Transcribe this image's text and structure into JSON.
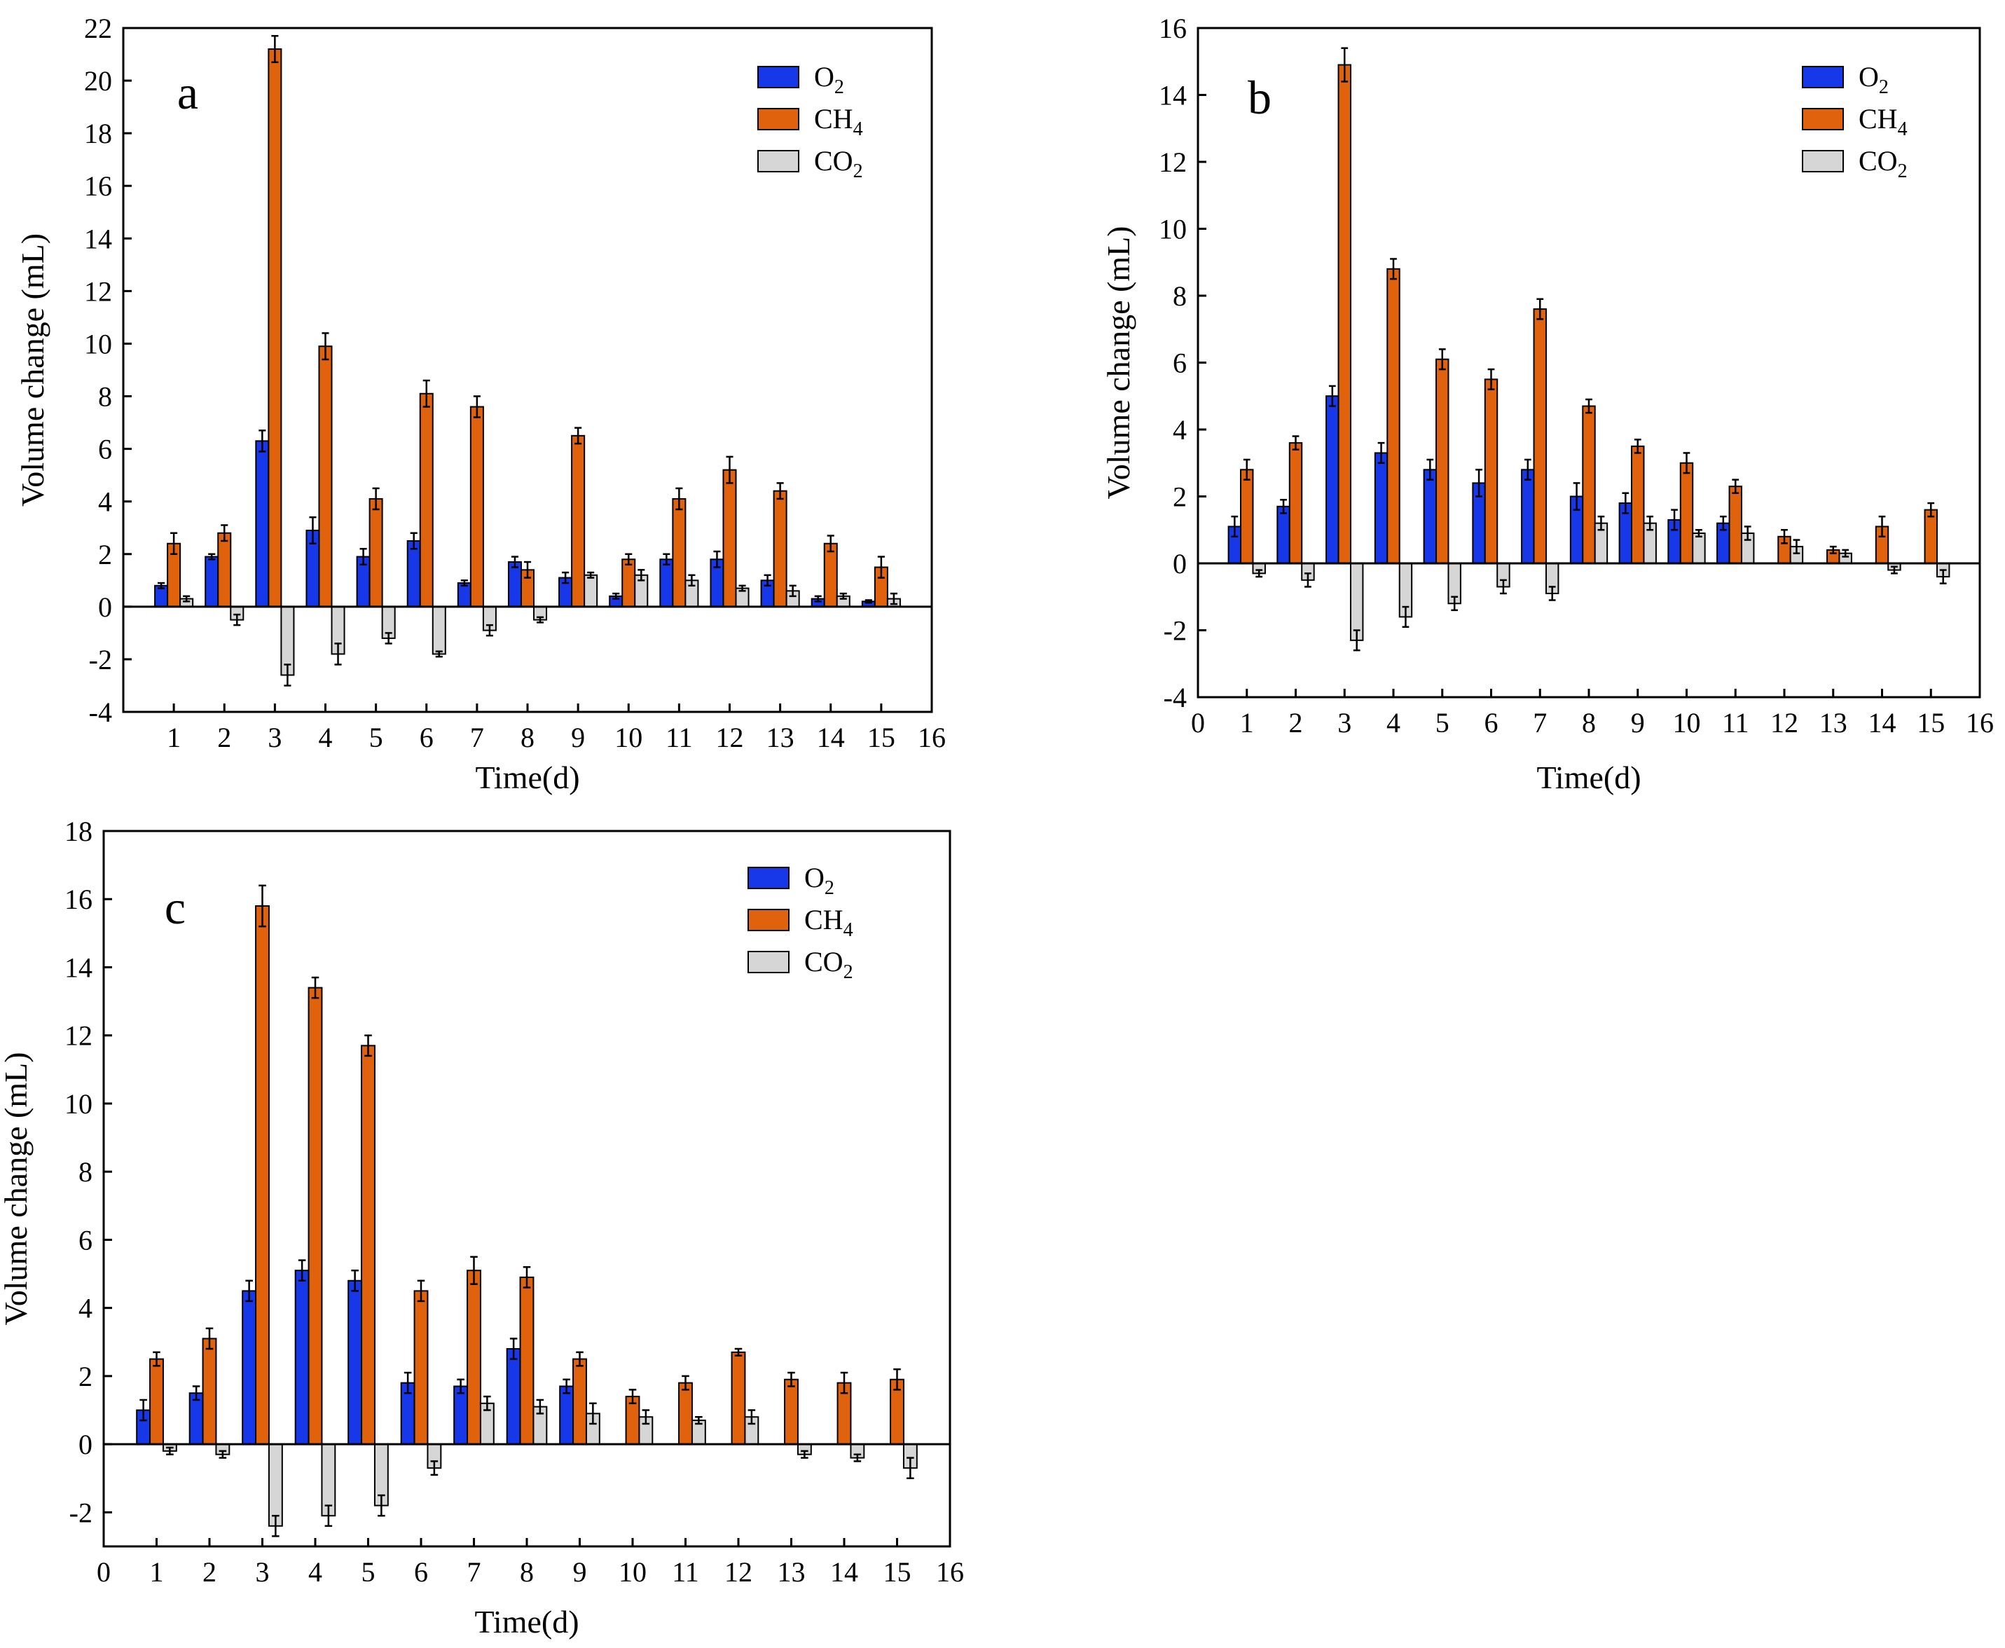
{
  "figure": {
    "colors": {
      "O2": "#1638e8",
      "CH4": "#e0620d",
      "CO2": "#d6d6d6",
      "axis": "#000000",
      "background": "#ffffff"
    },
    "legend": [
      {
        "key": "O2",
        "base": "O",
        "sub": "2"
      },
      {
        "key": "CH4",
        "base": "CH",
        "sub": "4"
      },
      {
        "key": "CO2",
        "base": "CO",
        "sub": "2"
      }
    ]
  },
  "chart_data": [
    {
      "id": "a",
      "type": "bar",
      "panel_label": "a",
      "xlabel": "Time(d)",
      "ylabel": "Volume change (mL)",
      "xlim": [
        0,
        16
      ],
      "ylim": [
        -4,
        22
      ],
      "xticks": [
        "1",
        "2",
        "3",
        "4",
        "5",
        "6",
        "7",
        "8",
        "9",
        "10",
        "11",
        "12",
        "13",
        "14",
        "15",
        "16"
      ],
      "yticks": [
        "-4",
        "-2",
        "0",
        "2",
        "4",
        "6",
        "8",
        "10",
        "12",
        "14",
        "16",
        "18",
        "20",
        "22"
      ],
      "legend_position": "top-right",
      "categories": [
        "1",
        "2",
        "3",
        "4",
        "5",
        "6",
        "7",
        "8",
        "9",
        "10",
        "11",
        "12",
        "13",
        "14",
        "15"
      ],
      "series": [
        {
          "name": "O2",
          "values": [
            0.8,
            1.9,
            6.3,
            2.9,
            1.9,
            2.5,
            0.9,
            1.7,
            1.1,
            0.4,
            1.8,
            1.8,
            1.0,
            0.3,
            0.2
          ],
          "errors": [
            0.1,
            0.1,
            0.4,
            0.5,
            0.3,
            0.3,
            0.1,
            0.2,
            0.2,
            0.1,
            0.2,
            0.3,
            0.2,
            0.1,
            0.05
          ]
        },
        {
          "name": "CH4",
          "values": [
            2.4,
            2.8,
            21.2,
            9.9,
            4.1,
            8.1,
            7.6,
            1.4,
            6.5,
            1.8,
            4.1,
            5.2,
            4.4,
            2.4,
            1.5
          ],
          "errors": [
            0.4,
            0.3,
            0.5,
            0.5,
            0.4,
            0.5,
            0.4,
            0.3,
            0.3,
            0.2,
            0.4,
            0.5,
            0.3,
            0.3,
            0.4
          ]
        },
        {
          "name": "CO2",
          "values": [
            0.3,
            -0.5,
            -2.6,
            -1.8,
            -1.2,
            -1.8,
            -0.9,
            -0.5,
            1.2,
            1.2,
            1.0,
            0.7,
            0.6,
            0.4,
            0.3
          ],
          "errors": [
            0.1,
            0.2,
            0.4,
            0.4,
            0.2,
            0.1,
            0.2,
            0.1,
            0.1,
            0.2,
            0.2,
            0.1,
            0.2,
            0.1,
            0.2
          ]
        }
      ]
    },
    {
      "id": "b",
      "type": "bar",
      "panel_label": "b",
      "xlabel": "Time(d)",
      "ylabel": "Volume change (mL)",
      "xlim": [
        0,
        16
      ],
      "ylim": [
        -4,
        16
      ],
      "xticks": [
        "0",
        "1",
        "2",
        "3",
        "4",
        "5",
        "6",
        "7",
        "8",
        "9",
        "10",
        "11",
        "12",
        "13",
        "14",
        "15",
        "16"
      ],
      "yticks": [
        "-4",
        "-2",
        "0",
        "2",
        "4",
        "6",
        "8",
        "10",
        "12",
        "14",
        "16"
      ],
      "legend_position": "top-right",
      "categories": [
        "1",
        "2",
        "3",
        "4",
        "5",
        "6",
        "7",
        "8",
        "9",
        "10",
        "11",
        "12",
        "13",
        "14",
        "15"
      ],
      "series": [
        {
          "name": "O2",
          "values": [
            1.1,
            1.7,
            5.0,
            3.3,
            2.8,
            2.4,
            2.8,
            2.0,
            1.8,
            1.3,
            1.2,
            null,
            null,
            null,
            null
          ],
          "errors": [
            0.3,
            0.2,
            0.3,
            0.3,
            0.3,
            0.4,
            0.3,
            0.4,
            0.3,
            0.3,
            0.2,
            null,
            null,
            null,
            null
          ]
        },
        {
          "name": "CH4",
          "values": [
            2.8,
            3.6,
            14.9,
            8.8,
            6.1,
            5.5,
            7.6,
            4.7,
            3.5,
            3.0,
            2.3,
            0.8,
            0.4,
            1.1,
            1.6
          ],
          "errors": [
            0.3,
            0.2,
            0.5,
            0.3,
            0.3,
            0.3,
            0.3,
            0.2,
            0.2,
            0.3,
            0.2,
            0.2,
            0.1,
            0.3,
            0.2
          ]
        },
        {
          "name": "CO2",
          "values": [
            -0.3,
            -0.5,
            -2.3,
            -1.6,
            -1.2,
            -0.7,
            -0.9,
            1.2,
            1.2,
            0.9,
            0.9,
            0.5,
            0.3,
            -0.2,
            -0.4
          ],
          "errors": [
            0.1,
            0.2,
            0.3,
            0.3,
            0.2,
            0.2,
            0.2,
            0.2,
            0.2,
            0.1,
            0.2,
            0.2,
            0.1,
            0.1,
            0.2
          ]
        }
      ]
    },
    {
      "id": "c",
      "type": "bar",
      "panel_label": "c",
      "xlabel": "Time(d)",
      "ylabel": "Volume change (mL)",
      "xlim": [
        0,
        16
      ],
      "ylim": [
        -3,
        18
      ],
      "xticks": [
        "0",
        "1",
        "2",
        "3",
        "4",
        "5",
        "6",
        "7",
        "8",
        "9",
        "10",
        "11",
        "12",
        "13",
        "14",
        "15",
        "16"
      ],
      "yticks": [
        "-2",
        "0",
        "2",
        "4",
        "6",
        "8",
        "10",
        "12",
        "14",
        "16",
        "18"
      ],
      "legend_position": "top-right",
      "categories": [
        "1",
        "2",
        "3",
        "4",
        "5",
        "6",
        "7",
        "8",
        "9",
        "10",
        "11",
        "12",
        "13",
        "14",
        "15"
      ],
      "series": [
        {
          "name": "O2",
          "values": [
            1.0,
            1.5,
            4.5,
            5.1,
            4.8,
            1.8,
            1.7,
            2.8,
            1.7,
            null,
            null,
            null,
            null,
            null,
            null
          ],
          "errors": [
            0.3,
            0.2,
            0.3,
            0.3,
            0.3,
            0.3,
            0.2,
            0.3,
            0.2,
            null,
            null,
            null,
            null,
            null,
            null
          ]
        },
        {
          "name": "CH4",
          "values": [
            2.5,
            3.1,
            15.8,
            13.4,
            11.7,
            4.5,
            5.1,
            4.9,
            2.5,
            1.4,
            1.8,
            2.7,
            1.9,
            1.8,
            1.9
          ],
          "errors": [
            0.2,
            0.3,
            0.6,
            0.3,
            0.3,
            0.3,
            0.4,
            0.3,
            0.2,
            0.2,
            0.2,
            0.1,
            0.2,
            0.3,
            0.3
          ]
        },
        {
          "name": "CO2",
          "values": [
            -0.2,
            -0.3,
            -2.4,
            -2.1,
            -1.8,
            -0.7,
            1.2,
            1.1,
            0.9,
            0.8,
            0.7,
            0.8,
            -0.3,
            -0.4,
            -0.7
          ],
          "errors": [
            0.1,
            0.1,
            0.3,
            0.3,
            0.3,
            0.2,
            0.2,
            0.2,
            0.3,
            0.2,
            0.1,
            0.2,
            0.1,
            0.1,
            0.3
          ]
        }
      ]
    }
  ]
}
